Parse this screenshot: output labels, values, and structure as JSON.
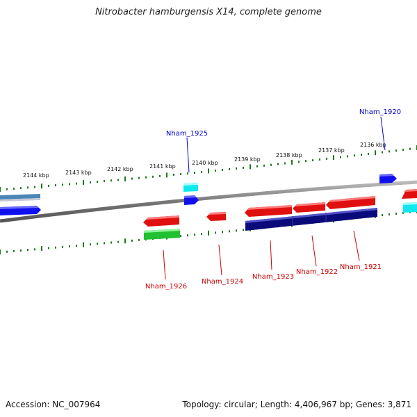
{
  "title": "Nitrobacter hamburgensis X14, complete genome",
  "footer": {
    "accession": "Accession: NC_007964",
    "topology": "Topology: circular; Length: 4,406,967 bp; Genes: 3,871"
  },
  "colors": {
    "forward_cds": "#1010ee",
    "reverse_cds": "#e01010",
    "cyan_feature": "#10e8f0",
    "green_feature": "#20c030",
    "navy_feature": "#0a0a7a",
    "steel_feature": "#4a86b8",
    "tick": "#1a7a1a",
    "backbone": "#888888",
    "forward_label": "#0000cc",
    "reverse_label": "#cc0000"
  },
  "chart_data": {
    "type": "genome_map",
    "unit": "kbp",
    "tick_labels": [
      {
        "kbp": 2144,
        "text": "2144 kbp"
      },
      {
        "kbp": 2143,
        "text": "2143 kbp"
      },
      {
        "kbp": 2142,
        "text": "2142 kbp"
      },
      {
        "kbp": 2141,
        "text": "2141 kbp"
      },
      {
        "kbp": 2140,
        "text": "2140 kbp"
      },
      {
        "kbp": 2139,
        "text": "2139 kbp"
      },
      {
        "kbp": 2138,
        "text": "2138 kbp"
      },
      {
        "kbp": 2137,
        "text": "2137 kbp"
      },
      {
        "kbp": 2136,
        "text": "2136 kbp"
      }
    ],
    "genes": [
      {
        "name": "Nham_1920",
        "strand": "+"
      },
      {
        "name": "Nham_1921",
        "strand": "-"
      },
      {
        "name": "Nham_1922",
        "strand": "-"
      },
      {
        "name": "Nham_1923",
        "strand": "-"
      },
      {
        "name": "Nham_1924",
        "strand": "-"
      },
      {
        "name": "Nham_1925",
        "strand": "+"
      },
      {
        "name": "Nham_1926",
        "strand": "-"
      }
    ]
  }
}
